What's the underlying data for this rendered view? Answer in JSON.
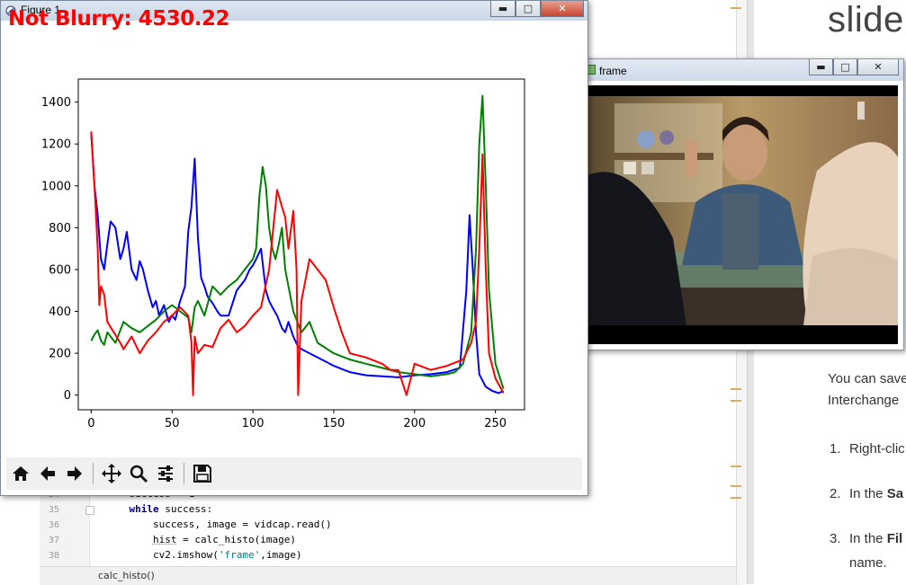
{
  "overlay_text": "Not Blurry: 4530.22",
  "figure_window": {
    "title": "Figure 1",
    "buttons": [
      "minimize",
      "maximize",
      "close"
    ],
    "toolbar": [
      "home-icon",
      "back-icon",
      "forward-icon",
      "pan-icon",
      "zoom-icon",
      "configure-subplots-icon",
      "save-icon"
    ]
  },
  "frame_window": {
    "title": "frame",
    "buttons": [
      "minimize",
      "maximize",
      "close"
    ]
  },
  "editor": {
    "lines": [
      {
        "num": "34",
        "code": "    success = 1"
      },
      {
        "num": "35",
        "code": "    while success:"
      },
      {
        "num": "36",
        "code": "        success, image = vidcap.read()"
      },
      {
        "num": "37",
        "code": "        hist = calc_histo(image)"
      },
      {
        "num": "38",
        "code": "        cv2.imshow('frame',image)"
      }
    ],
    "status": "calc_histo()"
  },
  "docs": {
    "title": "slide",
    "para_line1": "You can save",
    "para_line2": "Interchange",
    "items": [
      {
        "num": "1.",
        "text": "Right-clic"
      },
      {
        "num": "2.",
        "text": "In the Sa"
      },
      {
        "num": "3.",
        "text": "In the Fil",
        "cont": "name."
      }
    ]
  },
  "chart_data": {
    "type": "line",
    "title": "",
    "xlabel": "",
    "ylabel": "",
    "xlim": [
      -8,
      268
    ],
    "ylim": [
      -70,
      1510
    ],
    "xticks": [
      0,
      50,
      100,
      150,
      200,
      250
    ],
    "yticks": [
      0,
      200,
      400,
      600,
      800,
      1000,
      1200,
      1400
    ],
    "grid": false,
    "series": [
      {
        "color": "#0000ff",
        "x": [
          0,
          2,
          4,
          6,
          8,
          10,
          12,
          15,
          18,
          20,
          22,
          25,
          28,
          30,
          32,
          35,
          38,
          40,
          42,
          45,
          48,
          50,
          52,
          55,
          58,
          60,
          62,
          64,
          66,
          68,
          70,
          72,
          75,
          78,
          80,
          85,
          90,
          95,
          98,
          100,
          102,
          105,
          108,
          110,
          112,
          115,
          118,
          120,
          122,
          125,
          128,
          130,
          135,
          140,
          145,
          150,
          160,
          170,
          180,
          190,
          200,
          210,
          220,
          228,
          232,
          234,
          236,
          238,
          240,
          244,
          248,
          252,
          255
        ],
        "values": [
          1250,
          1000,
          860,
          650,
          600,
          720,
          830,
          800,
          650,
          700,
          780,
          600,
          550,
          640,
          600,
          500,
          420,
          450,
          380,
          430,
          350,
          380,
          360,
          450,
          520,
          780,
          900,
          1130,
          750,
          560,
          520,
          470,
          440,
          400,
          380,
          380,
          500,
          550,
          600,
          620,
          650,
          700,
          500,
          450,
          420,
          380,
          320,
          300,
          350,
          280,
          230,
          220,
          200,
          180,
          160,
          140,
          110,
          95,
          90,
          85,
          95,
          100,
          110,
          130,
          500,
          860,
          600,
          300,
          100,
          40,
          20,
          10,
          20
        ]
      },
      {
        "color": "#008000",
        "x": [
          0,
          2,
          4,
          6,
          8,
          10,
          15,
          20,
          25,
          30,
          35,
          40,
          45,
          50,
          55,
          60,
          62,
          64,
          66,
          70,
          75,
          80,
          85,
          90,
          95,
          100,
          102,
          104,
          106,
          108,
          110,
          112,
          114,
          116,
          118,
          120,
          125,
          130,
          135,
          140,
          150,
          160,
          170,
          180,
          190,
          200,
          210,
          220,
          225,
          230,
          235,
          238,
          240,
          242,
          244,
          246,
          250,
          255
        ],
        "values": [
          260,
          290,
          310,
          260,
          240,
          300,
          250,
          350,
          320,
          300,
          330,
          360,
          400,
          430,
          400,
          370,
          300,
          420,
          450,
          380,
          520,
          480,
          520,
          550,
          600,
          650,
          700,
          950,
          1090,
          1000,
          800,
          700,
          650,
          720,
          800,
          600,
          400,
          300,
          350,
          250,
          200,
          170,
          150,
          130,
          110,
          100,
          90,
          100,
          110,
          150,
          300,
          700,
          1200,
          1430,
          1000,
          500,
          150,
          30
        ]
      },
      {
        "color": "#ff0000",
        "x": [
          0,
          2,
          4,
          5,
          6,
          8,
          10,
          14,
          18,
          20,
          25,
          30,
          35,
          40,
          45,
          50,
          55,
          60,
          62,
          63,
          64,
          66,
          70,
          75,
          80,
          85,
          90,
          95,
          100,
          105,
          110,
          115,
          118,
          120,
          122,
          125,
          127,
          128,
          130,
          135,
          140,
          145,
          150,
          155,
          160,
          170,
          180,
          185,
          190,
          195,
          200,
          210,
          220,
          230,
          235,
          238,
          240,
          242,
          244,
          246,
          250,
          255
        ],
        "values": [
          1260,
          1000,
          700,
          430,
          520,
          480,
          350,
          300,
          250,
          220,
          280,
          200,
          260,
          300,
          350,
          380,
          420,
          380,
          250,
          0,
          280,
          200,
          240,
          230,
          320,
          360,
          300,
          330,
          380,
          420,
          600,
          980,
          900,
          850,
          700,
          880,
          600,
          0,
          450,
          650,
          600,
          550,
          420,
          300,
          200,
          180,
          150,
          120,
          120,
          0,
          150,
          120,
          140,
          170,
          250,
          350,
          700,
          1150,
          600,
          200,
          80,
          10
        ]
      }
    ]
  }
}
